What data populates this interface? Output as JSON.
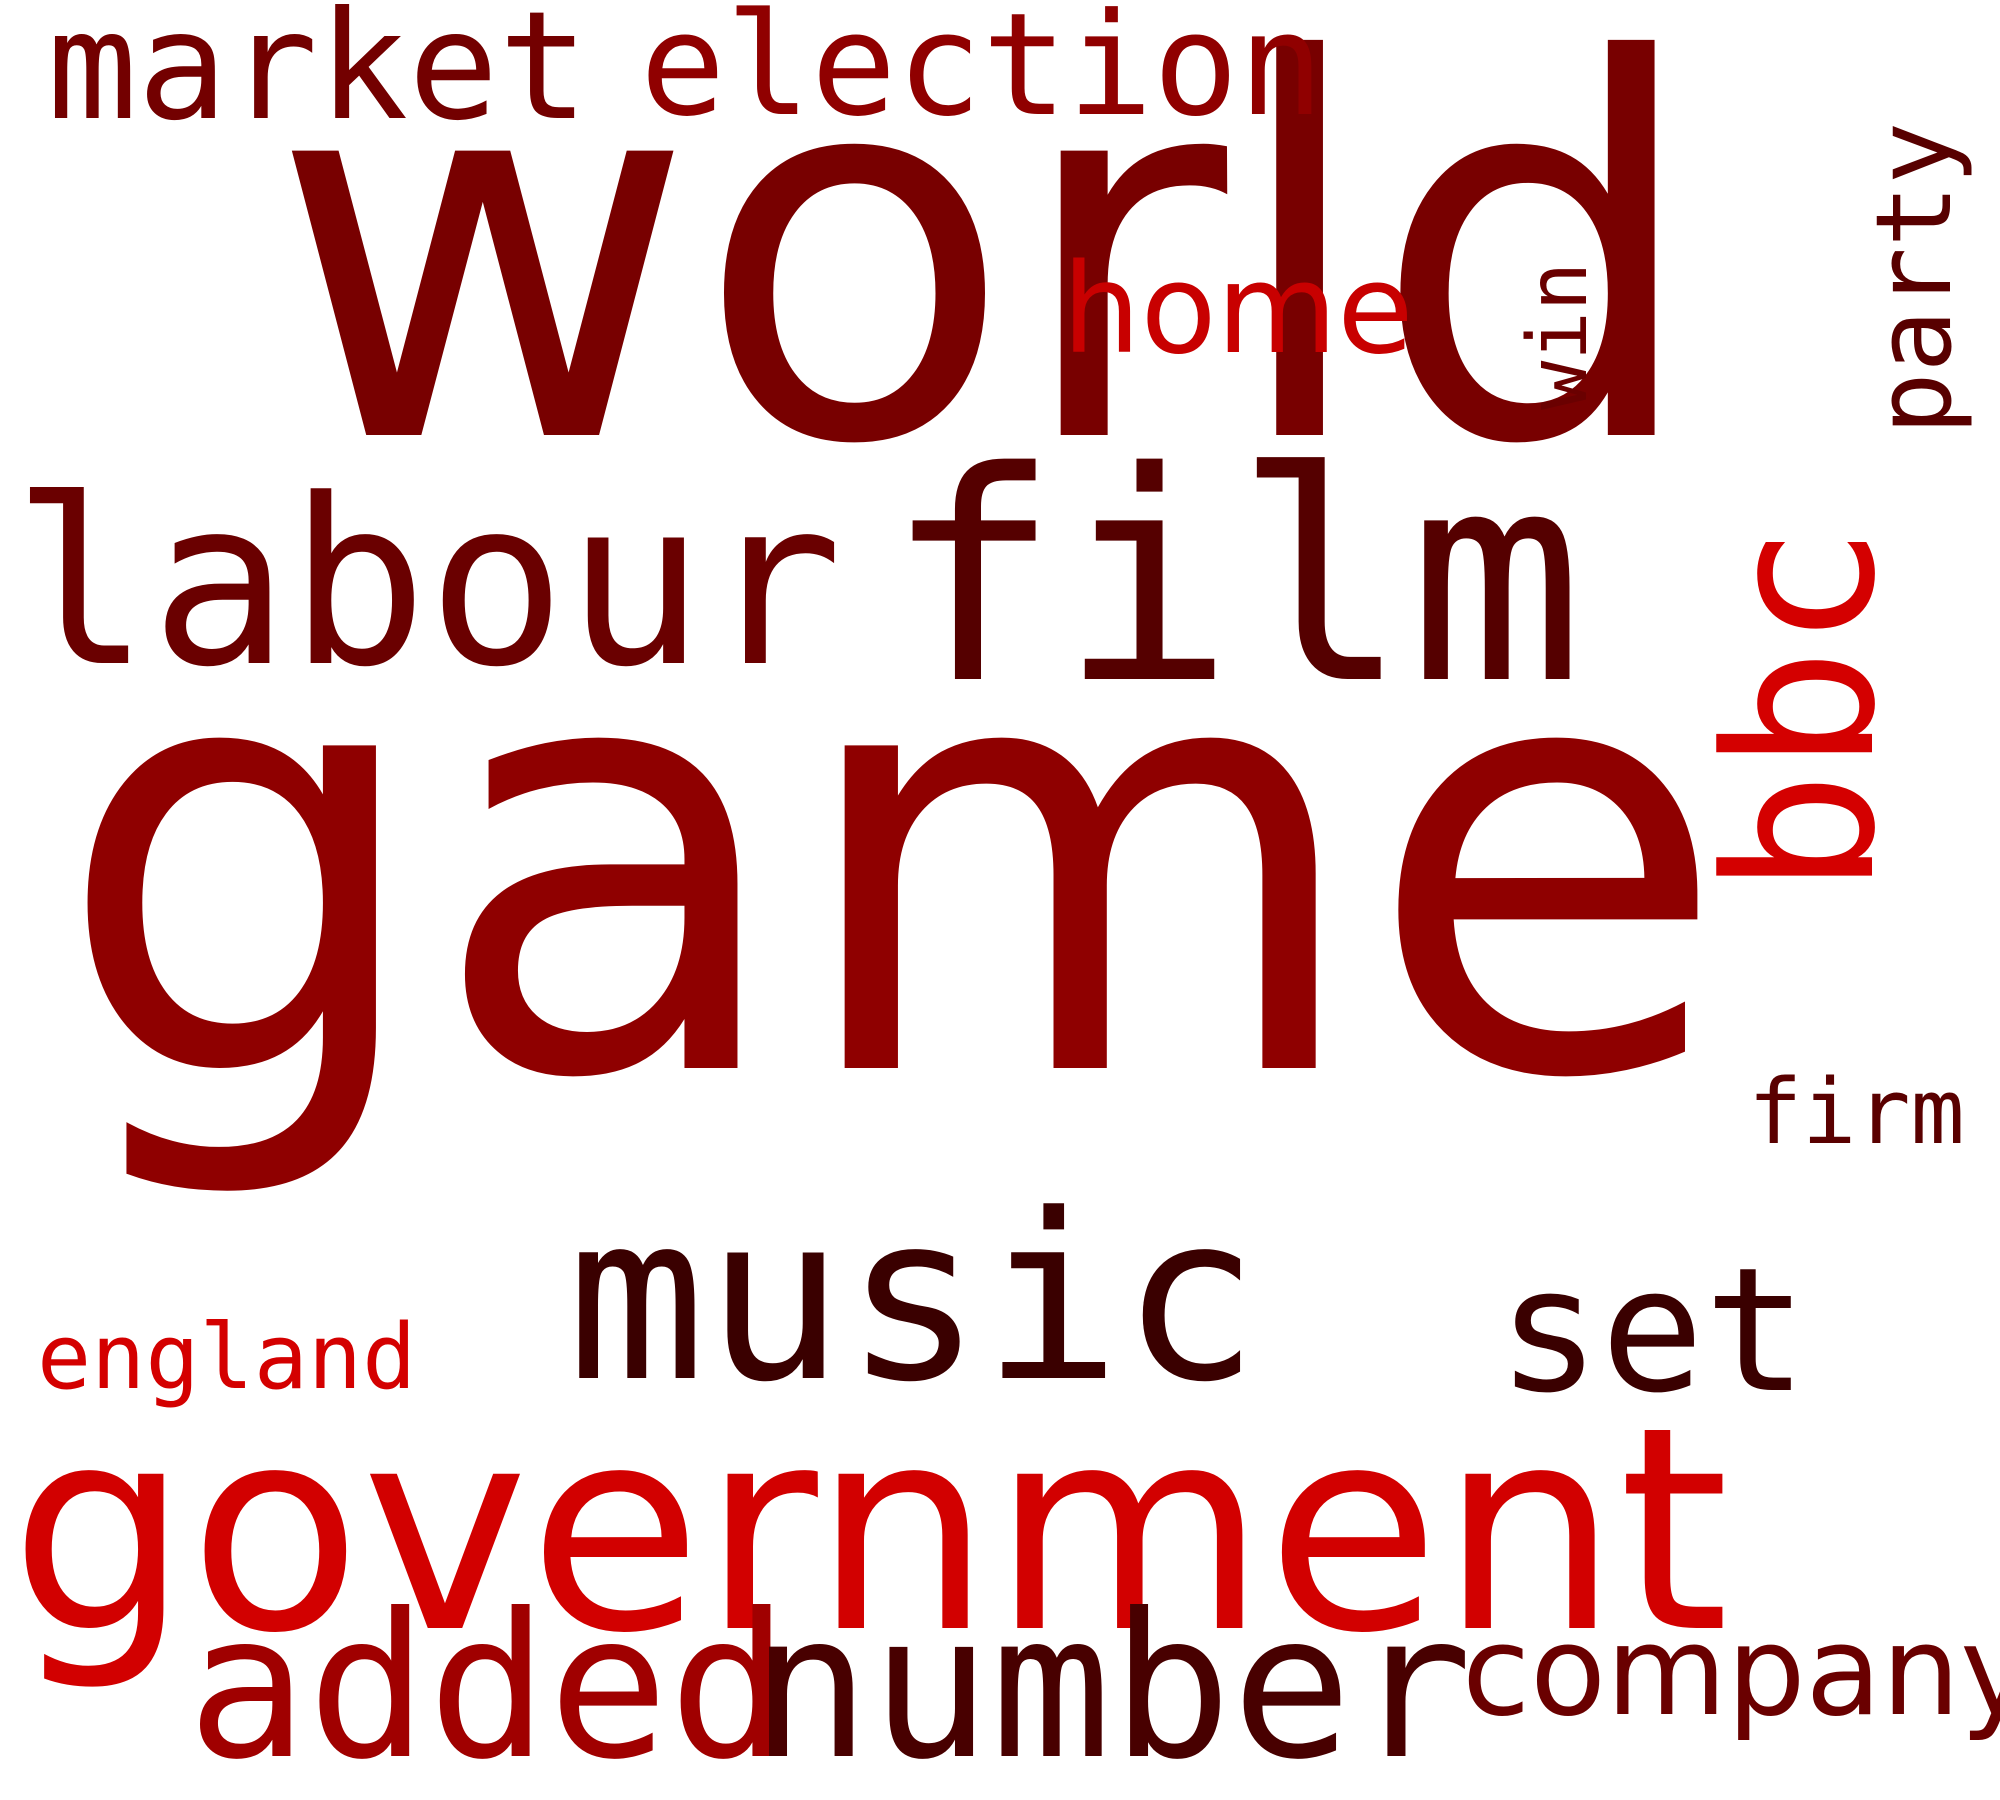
{
  "words": {
    "game": {
      "text": "game",
      "color": "#8f0000"
    },
    "world": {
      "text": "world",
      "color": "#780000"
    },
    "film": {
      "text": "film",
      "color": "#550000"
    },
    "music": {
      "text": "music",
      "color": "#3a0000"
    },
    "government": {
      "text": "government",
      "color": "#d20000"
    },
    "labour": {
      "text": "labour",
      "color": "#6a0000"
    },
    "bbc": {
      "text": "bbc",
      "color": "#d40000"
    },
    "number": {
      "text": "number",
      "color": "#480000"
    },
    "added": {
      "text": "added",
      "color": "#a00000"
    },
    "set": {
      "text": "set",
      "color": "#3a0000"
    },
    "market": {
      "text": "market",
      "color": "#730000"
    },
    "election": {
      "text": "election",
      "color": "#900000"
    },
    "company": {
      "text": "company",
      "color": "#6a0000"
    },
    "party": {
      "text": "party",
      "color": "#580000"
    },
    "home": {
      "text": "home",
      "color": "#c80000"
    },
    "win": {
      "text": "win",
      "color": "#6a0000"
    },
    "england": {
      "text": "england",
      "color": "#d40000"
    },
    "firm": {
      "text": "firm",
      "color": "#5a0000"
    }
  }
}
